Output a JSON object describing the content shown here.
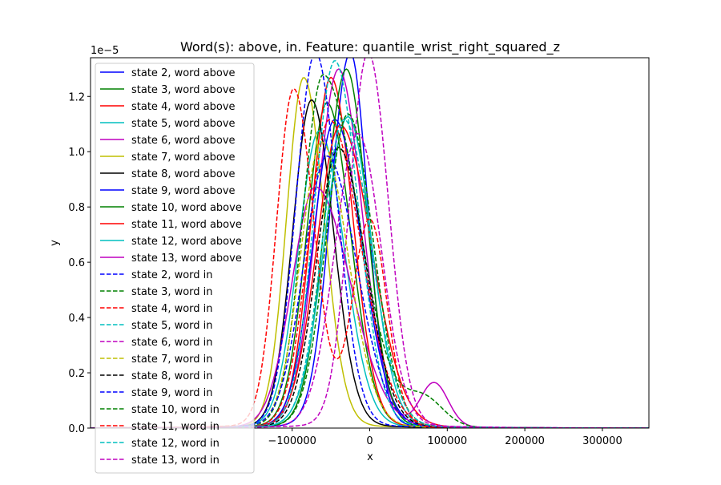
{
  "chart_data": {
    "type": "line",
    "title": "Word(s): above, in. Feature: quantile_wrist_right_squared_z",
    "xlabel": "x",
    "ylabel": "y",
    "y_offset_label": "1e−5",
    "xlim": [
      -360000,
      360000
    ],
    "ylim": [
      0,
      1.34e-05
    ],
    "xticks": [
      -100000,
      0,
      100000,
      200000,
      300000
    ],
    "xtick_labels": [
      "−100000",
      "0",
      "100000",
      "200000",
      "300000"
    ],
    "yticks": [
      0,
      2e-06,
      4e-06,
      6e-06,
      8e-06,
      1e-05,
      1.2e-05
    ],
    "ytick_labels": [
      "0.0",
      "0.2",
      "0.4",
      "0.6",
      "0.8",
      "1.0",
      "1.2"
    ],
    "grid": false,
    "legend_position": "top-left",
    "series": [
      {
        "name": "state 2, word above",
        "color": "#0000ff",
        "dash": "solid",
        "peak_x": -25000,
        "peak_y": 1.34e-05,
        "sigma_left": 25000,
        "sigma_right": 22000,
        "bump": null
      },
      {
        "name": "state 3, word above",
        "color": "#008000",
        "dash": "solid",
        "peak_x": -55000,
        "peak_y": 1.16e-05,
        "sigma_left": 26000,
        "sigma_right": 30000,
        "bump": null
      },
      {
        "name": "state 4, word above",
        "color": "#ff0000",
        "dash": "solid",
        "peak_x": -50000,
        "peak_y": 1.25e-05,
        "sigma_left": 25000,
        "sigma_right": 28000,
        "bump": null
      },
      {
        "name": "state 5, word above",
        "color": "#00bfbf",
        "dash": "solid",
        "peak_x": -65000,
        "peak_y": 1.06e-05,
        "sigma_left": 27000,
        "sigma_right": 32000,
        "bump": null
      },
      {
        "name": "state 6, word above",
        "color": "#bf00bf",
        "dash": "solid",
        "peak_x": -40000,
        "peak_y": 1.28e-05,
        "sigma_left": 28000,
        "sigma_right": 30000,
        "bump": {
          "x": 83000,
          "y": 1.6e-06,
          "sigma": 18000
        }
      },
      {
        "name": "state 7, word above",
        "color": "#bfbf00",
        "dash": "solid",
        "peak_x": -85000,
        "peak_y": 1.25e-05,
        "sigma_left": 22000,
        "sigma_right": 26000,
        "bump": null
      },
      {
        "name": "state 8, word above",
        "color": "#000000",
        "dash": "solid",
        "peak_x": -75000,
        "peak_y": 1.17e-05,
        "sigma_left": 24000,
        "sigma_right": 28000,
        "bump": null
      },
      {
        "name": "state 9, word above",
        "color": "#0000ff",
        "dash": "solid",
        "peak_x": -45000,
        "peak_y": 1.1e-05,
        "sigma_left": 28000,
        "sigma_right": 34000,
        "bump": null
      },
      {
        "name": "state 10, word above",
        "color": "#008000",
        "dash": "solid",
        "peak_x": -30000,
        "peak_y": 1.28e-05,
        "sigma_left": 27000,
        "sigma_right": 26000,
        "bump": null
      },
      {
        "name": "state 11, word above",
        "color": "#ff0000",
        "dash": "solid",
        "peak_x": -38000,
        "peak_y": 1.08e-05,
        "sigma_left": 30000,
        "sigma_right": 40000,
        "bump": null
      },
      {
        "name": "state 12, word above",
        "color": "#00bfbf",
        "dash": "solid",
        "peak_x": -28000,
        "peak_y": 1.11e-05,
        "sigma_left": 30000,
        "sigma_right": 30000,
        "bump": null
      },
      {
        "name": "state 13, word above",
        "color": "#bf00bf",
        "dash": "solid",
        "peak_x": -70000,
        "peak_y": 8.6e-06,
        "sigma_left": 30000,
        "sigma_right": 45000,
        "bump": null
      },
      {
        "name": "state 2, word in",
        "color": "#0000ff",
        "dash": "dashed",
        "peak_x": -70000,
        "peak_y": 1.34e-05,
        "sigma_left": 25000,
        "sigma_right": 28000,
        "bump": null
      },
      {
        "name": "state 3, word in",
        "color": "#008000",
        "dash": "dashed",
        "peak_x": -60000,
        "peak_y": 1.26e-05,
        "sigma_left": 26000,
        "sigma_right": 45000,
        "bump": {
          "x": 70000,
          "y": 1e-06,
          "sigma": 25000
        }
      },
      {
        "name": "state 4, word in",
        "color": "#ff0000",
        "dash": "dashed",
        "peak_x": -52000,
        "peak_y": 1.1e-05,
        "sigma_left": 27000,
        "sigma_right": 40000,
        "bump": null
      },
      {
        "name": "state 5, word in",
        "color": "#00bfbf",
        "dash": "dashed",
        "peak_x": -45000,
        "peak_y": 1.31e-05,
        "sigma_left": 26000,
        "sigma_right": 30000,
        "bump": null
      },
      {
        "name": "state 6, word in",
        "color": "#bf00bf",
        "dash": "dashed",
        "peak_x": -2000,
        "peak_y": 1.34e-05,
        "sigma_left": 24000,
        "sigma_right": 26000,
        "bump": null
      },
      {
        "name": "state 7, word in",
        "color": "#bfbf00",
        "dash": "dashed",
        "peak_x": -62000,
        "peak_y": 1.02e-05,
        "sigma_left": 27000,
        "sigma_right": 34000,
        "bump": null
      },
      {
        "name": "state 8, word in",
        "color": "#000000",
        "dash": "dashed",
        "peak_x": -40000,
        "peak_y": 1e-05,
        "sigma_left": 28000,
        "sigma_right": 34000,
        "bump": null
      },
      {
        "name": "state 9, word in",
        "color": "#0000ff",
        "dash": "dashed",
        "peak_x": -55000,
        "peak_y": 9.7e-06,
        "sigma_left": 30000,
        "sigma_right": 38000,
        "bump": null
      },
      {
        "name": "state 10, word in",
        "color": "#008000",
        "dash": "dashed",
        "peak_x": -28000,
        "peak_y": 1.12e-05,
        "sigma_left": 28000,
        "sigma_right": 32000,
        "bump": null
      },
      {
        "name": "state 11, word in",
        "color": "#ff0000",
        "dash": "dashed",
        "peak_x": -98000,
        "peak_y": 1.21e-05,
        "sigma_left": 22000,
        "sigma_right": 26000,
        "bump": {
          "x": 0,
          "y": 7.5e-06,
          "sigma": 22000
        }
      },
      {
        "name": "state 12, word in",
        "color": "#00bfbf",
        "dash": "dashed",
        "peak_x": -33000,
        "peak_y": 1.1e-05,
        "sigma_left": 28000,
        "sigma_right": 34000,
        "bump": null
      },
      {
        "name": "state 13, word in",
        "color": "#bf00bf",
        "dash": "dashed",
        "peak_x": -15000,
        "peak_y": 1.05e-05,
        "sigma_left": 30000,
        "sigma_right": 30000,
        "bump": null
      }
    ]
  }
}
